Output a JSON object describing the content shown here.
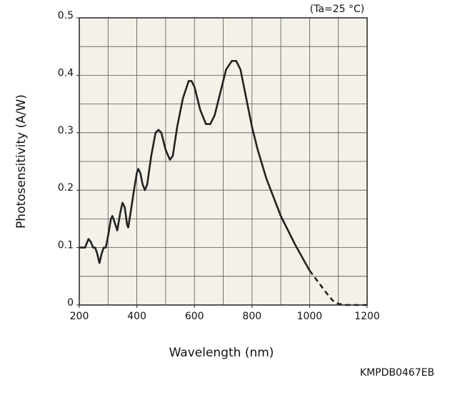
{
  "chart_data": {
    "type": "line",
    "annotation": "(Ta=25 °C)",
    "xlabel": "Wavelength (nm)",
    "ylabel": "Photosensitivity (A/W)",
    "code": "KMPDB0467EB",
    "xlim": [
      200,
      1200
    ],
    "ylim": [
      0,
      0.5
    ],
    "xticks": [
      200,
      400,
      600,
      800,
      1000,
      1200
    ],
    "yticks": [
      0,
      0.1,
      0.2,
      0.3,
      0.4,
      0.5
    ],
    "xgrid": [
      300,
      400,
      500,
      600,
      700,
      800,
      900,
      1000,
      1100
    ],
    "ygrid": [
      0.05,
      0.1,
      0.15,
      0.2,
      0.25,
      0.3,
      0.35,
      0.4,
      0.45
    ],
    "grid": true,
    "color": "#222222",
    "series": [
      {
        "dashed": false,
        "x": [
          200,
          210,
          220,
          232,
          240,
          248,
          255,
          262,
          270,
          278,
          285,
          292,
          300,
          310,
          315,
          322,
          332,
          342,
          350,
          358,
          366,
          370,
          378,
          390,
          400,
          405,
          412,
          420,
          428,
          436,
          450,
          465,
          475,
          485,
          500,
          515,
          525,
          540,
          560,
          580,
          590,
          600,
          620,
          640,
          655,
          670,
          690,
          710,
          730,
          745,
          760,
          780,
          800,
          820,
          850,
          900,
          950,
          1000
        ],
        "values": [
          0.1,
          0.1,
          0.1,
          0.115,
          0.11,
          0.1,
          0.1,
          0.09,
          0.073,
          0.09,
          0.1,
          0.1,
          0.12,
          0.15,
          0.155,
          0.145,
          0.13,
          0.16,
          0.178,
          0.17,
          0.14,
          0.135,
          0.16,
          0.2,
          0.23,
          0.237,
          0.23,
          0.21,
          0.2,
          0.21,
          0.26,
          0.3,
          0.305,
          0.3,
          0.27,
          0.253,
          0.26,
          0.31,
          0.36,
          0.39,
          0.39,
          0.38,
          0.34,
          0.315,
          0.315,
          0.33,
          0.37,
          0.41,
          0.425,
          0.425,
          0.41,
          0.36,
          0.31,
          0.27,
          0.22,
          0.155,
          0.105,
          0.06
        ]
      },
      {
        "dashed": true,
        "x": [
          1000,
          1030,
          1060,
          1080,
          1100,
          1130,
          1200
        ],
        "values": [
          0.06,
          0.04,
          0.02,
          0.008,
          0.002,
          0,
          0
        ]
      }
    ]
  }
}
